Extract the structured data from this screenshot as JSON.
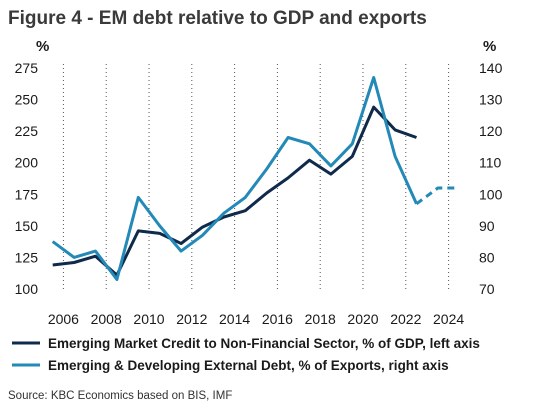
{
  "title": "Figure 4 - EM debt relative to GDP and exports",
  "source": "Source: KBC Economics based on BIS, IMF",
  "chart_data": {
    "type": "line",
    "left_axis": {
      "unit": "%",
      "range": [
        100,
        275
      ],
      "ticks": [
        100,
        125,
        150,
        175,
        200,
        225,
        250,
        275
      ]
    },
    "right_axis": {
      "unit": "%",
      "range": [
        70,
        140
      ],
      "ticks": [
        70,
        80,
        90,
        100,
        110,
        120,
        130,
        140
      ]
    },
    "x_axis": {
      "range": [
        2005,
        2025
      ],
      "ticks": [
        2006,
        2008,
        2010,
        2012,
        2014,
        2016,
        2018,
        2020,
        2022,
        2024
      ]
    },
    "grid": "vertical dotted lines at x ticks",
    "legend_position": "bottom",
    "series": [
      {
        "name": "Emerging Market Credit to Non-Financial Sector, % of GDP, left axis",
        "axis": "left",
        "color": "#0f2a4a",
        "x": [
          2005.5,
          2006.5,
          2007.5,
          2008.5,
          2009.5,
          2010.5,
          2011.5,
          2012.5,
          2013.5,
          2014.5,
          2015.5,
          2016.5,
          2017.5,
          2018.5,
          2019.5,
          2020.5,
          2021.5,
          2022.5
        ],
        "values": [
          119,
          121,
          126,
          111,
          146,
          144,
          136,
          149,
          157,
          162,
          176,
          188,
          202,
          191,
          205,
          244,
          226,
          220
        ]
      },
      {
        "name": "Emerging & Developing External Debt, % of Exports, right axis",
        "axis": "right",
        "color": "#2389b7",
        "x": [
          2005.5,
          2006.5,
          2007.5,
          2008.5,
          2009.5,
          2010.5,
          2011.5,
          2012.5,
          2013.5,
          2014.5,
          2015.5,
          2016.5,
          2017.5,
          2018.5,
          2019.5,
          2020.5,
          2021.5,
          2022.5
        ],
        "values": [
          85,
          80,
          82,
          73,
          99,
          90,
          82,
          87,
          94,
          99,
          108,
          118,
          116,
          109,
          116,
          137,
          112,
          97
        ]
      },
      {
        "name": "Emerging & Developing External Debt, % of Exports, right axis (forecast)",
        "axis": "right",
        "color": "#2389b7",
        "dashed": true,
        "x": [
          2022.5,
          2023.5,
          2024.5
        ],
        "values": [
          97,
          102,
          102
        ]
      }
    ]
  }
}
